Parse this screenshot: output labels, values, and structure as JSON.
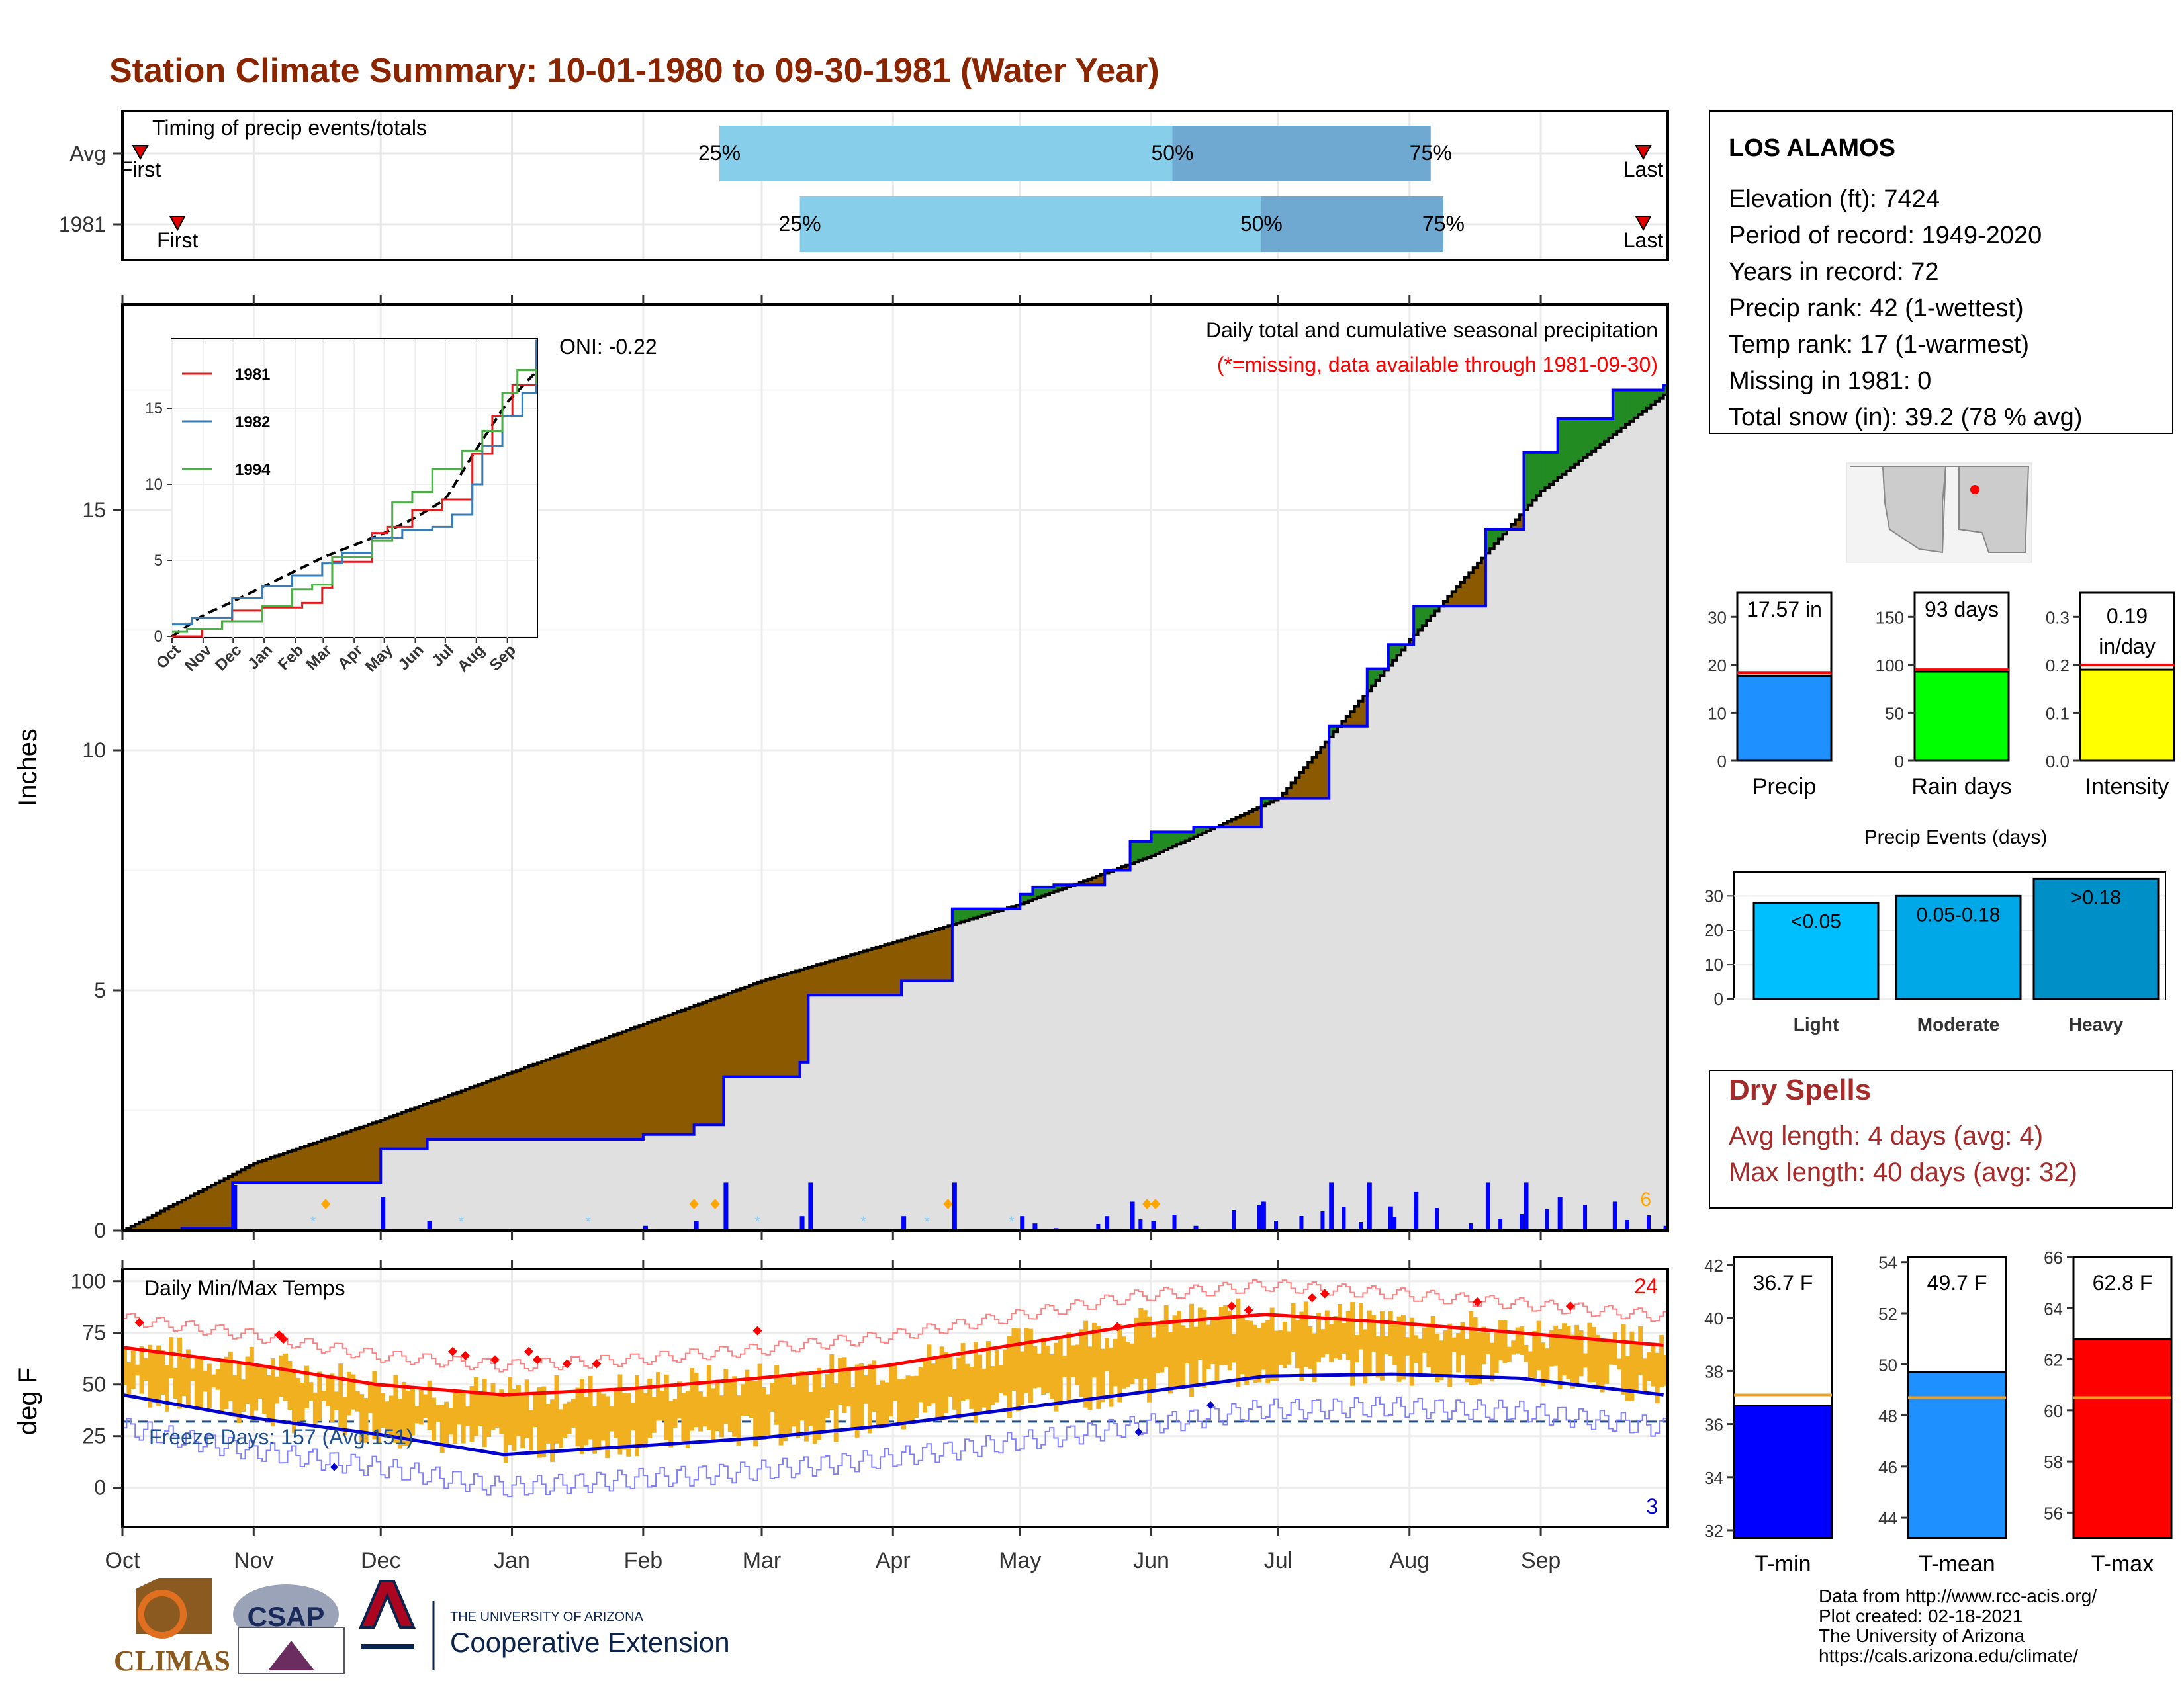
{
  "title": "Station Climate Summary: 10-01-1980 to 09-30-1981 (Water Year)",
  "colors": {
    "title": "#8b2500",
    "deficit": "#8B5A00",
    "surplus": "#228B22",
    "cum_line": "#0000ff",
    "fill": "#e0e0e0",
    "bar_light": "#87ceeb",
    "bar_dark": "#6fa8d0",
    "tmax": "#ff0000",
    "tmin": "#0000cc",
    "temp_bar": "#f0b020"
  },
  "timing": {
    "label": "Timing of precip events/totals",
    "rows": [
      {
        "name": "Avg",
        "first_label": "First",
        "last_label": "Last",
        "p25": "25%",
        "p50": "50%",
        "p75": "75%",
        "first_day": 1,
        "last_day": 364,
        "p25_day": 141,
        "p50_day": 248,
        "p75_day": 309
      },
      {
        "name": "1981",
        "first_label": "First",
        "last_label": "Last",
        "p25": "25%",
        "p50": "50%",
        "p75": "75%",
        "first_day": 13,
        "last_day": 364,
        "p25_day": 160,
        "p50_day": 269,
        "p75_day": 312
      }
    ]
  },
  "precip": {
    "ylabel": "Inches",
    "caption": "Daily total and cumulative seasonal precipitation",
    "missing_note": "(*=missing, data available through 1981-09-30)",
    "oni": "ONI: -0.22",
    "count_label": "6",
    "y_ticks": [
      "0",
      "5",
      "10",
      "15"
    ]
  },
  "inset": {
    "y_ticks": [
      "0",
      "5",
      "10",
      "15"
    ],
    "x_ticks": [
      "Oct",
      "Nov",
      "Dec",
      "Jan",
      "Feb",
      "Mar",
      "Apr",
      "May",
      "Jun",
      "Jul",
      "Aug",
      "Sep"
    ],
    "legend": [
      {
        "name": "1981",
        "color": "#e41a1c"
      },
      {
        "name": "1982",
        "color": "#377eb8"
      },
      {
        "name": "1994",
        "color": "#4daf4a"
      }
    ]
  },
  "temps": {
    "label": "Daily Min/Max Temps",
    "ylabel": "deg F",
    "freeze": "Freeze Days: 157 (Avg:151)",
    "tmax_count": "24",
    "tmin_count": "3",
    "y_ticks": [
      "0",
      "25",
      "50",
      "75",
      "100"
    ]
  },
  "months": [
    "Oct",
    "Nov",
    "Dec",
    "Jan",
    "Feb",
    "Mar",
    "Apr",
    "May",
    "Jun",
    "Jul",
    "Aug",
    "Sep"
  ],
  "station": {
    "name": "LOS ALAMOS",
    "lines": [
      "Elevation (ft): 7424",
      "Period of record: 1949-2020",
      "Years in record: 72",
      "Precip rank: 42 (1-wettest)",
      "Temp rank: 17 (1-warmest)",
      "Missing in 1981: 0",
      "Total snow (in): 39.2 (78 % avg)"
    ]
  },
  "summary_bars": [
    {
      "name": "Precip",
      "label": "17.57 in",
      "value": 17.57,
      "avg": 18.3,
      "max": 35,
      "ticks": [
        "0",
        "10",
        "20",
        "30"
      ],
      "tick_vals": [
        0,
        10,
        20,
        30
      ],
      "color": "#1e90ff"
    },
    {
      "name": "Rain days",
      "label": "93 days",
      "value": 93,
      "avg": 95,
      "max": 175,
      "ticks": [
        "0",
        "50",
        "100",
        "150"
      ],
      "tick_vals": [
        0,
        50,
        100,
        150
      ],
      "color": "#00ff00"
    },
    {
      "name": "Intensity",
      "label1": "0.19",
      "label2": "in/day",
      "value": 0.19,
      "avg": 0.2,
      "max": 0.35,
      "ticks": [
        "0.0",
        "0.1",
        "0.2",
        "0.3"
      ],
      "tick_vals": [
        0,
        0.1,
        0.2,
        0.3
      ],
      "color": "#ffff00"
    }
  ],
  "events": {
    "title": "Precip Events (days)",
    "ticks": [
      "0",
      "10",
      "20",
      "30"
    ],
    "bars": [
      {
        "name": "Light",
        "label": "<0.05",
        "value": 28,
        "color": "#00bfff"
      },
      {
        "name": "Moderate",
        "label": "0.05-0.18",
        "value": 30,
        "color": "#00a8e8"
      },
      {
        "name": "Heavy",
        "label": ">0.18",
        "value": 35,
        "color": "#0090c8"
      }
    ]
  },
  "dry_spells": {
    "title": "Dry Spells",
    "avg": "Avg length: 4 days (avg: 4)",
    "max": "Max length: 40 days (avg: 32)"
  },
  "temp_bars": [
    {
      "name": "T-min",
      "label": "36.7 F",
      "value": 36.7,
      "avg": 37.1,
      "min": 31.7,
      "max": 42.3,
      "ticks": [
        "32",
        "34",
        "36",
        "38",
        "40",
        "42"
      ],
      "tick_vals": [
        32,
        34,
        36,
        38,
        40,
        42
      ],
      "color": "#0000ff"
    },
    {
      "name": "T-mean",
      "label": "49.7 F",
      "value": 49.7,
      "avg": 48.7,
      "min": 43.2,
      "max": 54.2,
      "ticks": [
        "44",
        "46",
        "48",
        "50",
        "52",
        "54"
      ],
      "tick_vals": [
        44,
        46,
        48,
        50,
        52,
        54
      ],
      "color": "#1e90ff"
    },
    {
      "name": "T-max",
      "label": "62.8 F",
      "value": 62.8,
      "avg": 60.5,
      "min": 55.0,
      "max": 66.0,
      "ticks": [
        "56",
        "58",
        "60",
        "62",
        "64",
        "66"
      ],
      "tick_vals": [
        56,
        58,
        60,
        62,
        64,
        66
      ],
      "color": "#ff0000"
    }
  ],
  "footer": {
    "credits": [
      "Data from http://www.rcc-acis.org/",
      "Plot created: 02-18-2021",
      "The University of Arizona",
      "https://cals.arizona.edu/climate/"
    ],
    "logo1": "CLIMAS",
    "logo2": "CSAP",
    "logo3_small": "THE UNIVERSITY OF ARIZONA",
    "logo3_big": "Cooperative Extension"
  },
  "chart_data": {
    "type": "area",
    "title": "Station Climate Summary: 10-01-1980 to 09-30-1981 (Water Year)",
    "ylabel": "Inches",
    "ylim": [
      0,
      19.3
    ],
    "x_ticks": [
      "Oct",
      "Nov",
      "Dec",
      "Jan",
      "Feb",
      "Mar",
      "Apr",
      "May",
      "Jun",
      "Jul",
      "Aug",
      "Sep"
    ],
    "series": [
      {
        "name": "Avg",
        "x": [
          0,
          31,
          61,
          92,
          123,
          151,
          182,
          212,
          243,
          273,
          304,
          335,
          364
        ],
        "values": [
          0,
          1.4,
          2.3,
          3.3,
          4.3,
          5.2,
          6.0,
          6.8,
          7.8,
          9.0,
          12.3,
          15.4,
          17.4
        ]
      },
      {
        "name": "1981",
        "x": [
          0,
          14,
          26,
          50,
          61,
          72,
          92,
          123,
          135,
          140,
          142,
          160,
          162,
          171,
          184,
          196,
          212,
          215,
          220,
          232,
          238,
          243,
          253,
          269,
          285,
          294,
          299,
          305,
          322,
          331,
          339,
          352,
          364
        ],
        "values": [
          0,
          0.05,
          1.0,
          1.0,
          1.7,
          1.9,
          1.9,
          2.0,
          2.2,
          2.2,
          3.2,
          3.5,
          4.9,
          4.9,
          5.2,
          6.7,
          7.0,
          7.15,
          7.2,
          7.5,
          8.1,
          8.3,
          8.4,
          9.0,
          10.5,
          11.7,
          12.2,
          13.0,
          14.6,
          16.2,
          16.9,
          17.5,
          17.6
        ]
      }
    ],
    "temps": {
      "ylabel": "deg F",
      "ylim": [
        -19,
        106
      ],
      "tmax_avg": {
        "x": [
          0,
          30,
          60,
          90,
          120,
          150,
          180,
          210,
          240,
          270,
          300,
          330,
          364
        ],
        "values": [
          68,
          60,
          50,
          45,
          48,
          53,
          59,
          69,
          79,
          84,
          80,
          75,
          69
        ]
      },
      "tmin_avg": {
        "x": [
          0,
          30,
          60,
          90,
          120,
          150,
          180,
          210,
          240,
          270,
          300,
          330,
          364
        ],
        "values": [
          45,
          34,
          26,
          16,
          20,
          24,
          30,
          38,
          46,
          54,
          55,
          53,
          45
        ]
      },
      "freeze_line": 32
    }
  }
}
